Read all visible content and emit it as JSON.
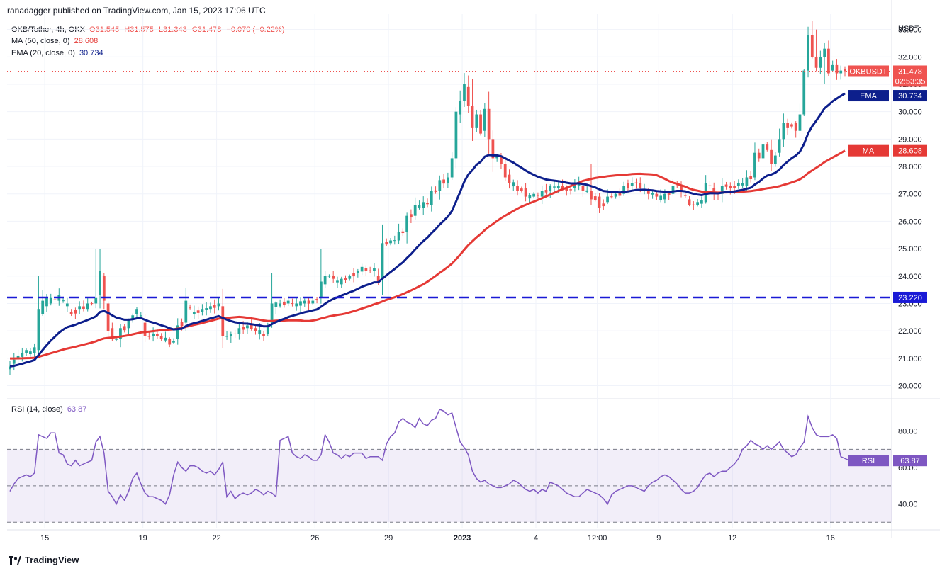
{
  "header": {
    "published": "ranadagger published on TradingView.com, Jan 15, 2023 17:06 UTC"
  },
  "legend": {
    "symbol": "OKB/Tether, 4h, OKX",
    "open": "O31.545",
    "high": "H31.575",
    "low": "L31.343",
    "close": "C31.478",
    "change": "−0.070 (−0.22%)",
    "ma_label": "MA (50, close, 0)",
    "ma_value": "28.608",
    "ema_label": "EMA (20, close, 0)",
    "ema_value": "30.734",
    "rsi_label": "RSI (14, close)",
    "rsi_value": "63.87"
  },
  "colors": {
    "up": "#26a69a",
    "down": "#ef5350",
    "ema": "#0d1f8c",
    "ma": "#e53935",
    "rsi": "#7e57c2",
    "hline": "#1a1ad6",
    "ma_value_color": "#e53935",
    "ema_value_color": "#0d1f8c",
    "rsi_value_color": "#7e57c2"
  },
  "footer": {
    "brand": "TradingView"
  },
  "chart_data": {
    "type": "candlestick",
    "currency_label": "USDT",
    "price_ylim": [
      19.6,
      33.3
    ],
    "price_ticks": [
      "20.000",
      "21.000",
      "22.000",
      "23.000",
      "24.000",
      "25.000",
      "26.000",
      "27.000",
      "28.000",
      "29.000",
      "30.000",
      "31.000",
      "32.000",
      "33.000"
    ],
    "rsi_ylim": [
      27,
      97
    ],
    "rsi_ticks": [
      "40.00",
      "60.00",
      "80.00"
    ],
    "rsi_bands": [
      30,
      50,
      70
    ],
    "x_ticks": [
      {
        "label": "15",
        "pos": 8.5
      },
      {
        "label": "19",
        "pos": 32.5
      },
      {
        "label": "22",
        "pos": 50.5
      },
      {
        "label": "26",
        "pos": 74.5
      },
      {
        "label": "29",
        "pos": 92.5
      },
      {
        "label": "2023",
        "pos": 110.5
      },
      {
        "label": "4",
        "pos": 128.5
      },
      {
        "label": "12:00",
        "pos": 143.5
      },
      {
        "label": "9",
        "pos": 158.5
      },
      {
        "label": "12",
        "pos": 176.5
      },
      {
        "label": "16",
        "pos": 200.5
      }
    ],
    "horizontal_line": {
      "value": 23.22,
      "label": "23.220"
    },
    "last_price": {
      "symbol": "OKBUSDT",
      "value": 31.478,
      "label": "31.478",
      "countdown": "02:53:35"
    },
    "ema_tag": {
      "name": "EMA",
      "label": "30.734"
    },
    "ma_tag": {
      "name": "MA",
      "label": "28.608"
    },
    "rsi_tag": {
      "name": "RSI",
      "label": "63.87"
    },
    "anchors": [
      {
        "i": 0,
        "o": 20.6,
        "c": 20.7
      },
      {
        "i": 1,
        "o": 20.8,
        "c": 20.95
      },
      {
        "i": 2,
        "o": 21.0,
        "c": 21.1
      },
      {
        "i": 3,
        "o": 21.05,
        "c": 21.2
      },
      {
        "i": 4,
        "o": 21.2,
        "c": 21.3
      },
      {
        "i": 5,
        "o": 21.15,
        "c": 21.25
      },
      {
        "i": 6,
        "o": 21.2,
        "c": 21.4
      },
      {
        "i": 7,
        "o": 21.3,
        "c": 22.8
      },
      {
        "i": 8,
        "o": 22.6,
        "c": 23.1
      },
      {
        "i": 9,
        "o": 22.9,
        "c": 23.2
      },
      {
        "i": 10,
        "o": 23.0,
        "c": 23.2
      },
      {
        "i": 12,
        "o": 23.1,
        "c": 23.3
      },
      {
        "i": 14,
        "o": 22.9,
        "c": 23.0
      },
      {
        "i": 15,
        "o": 22.7,
        "c": 22.6
      },
      {
        "i": 17,
        "o": 22.8,
        "c": 22.9
      },
      {
        "i": 19,
        "o": 22.8,
        "c": 23.0
      },
      {
        "i": 21,
        "o": 23.0,
        "c": 23.2
      },
      {
        "i": 22,
        "o": 23.3,
        "c": 24.2
      },
      {
        "i": 23,
        "o": 24.0,
        "c": 23.1
      },
      {
        "i": 24,
        "o": 23.0,
        "c": 22.0
      },
      {
        "i": 25,
        "o": 22.1,
        "c": 21.7
      },
      {
        "i": 27,
        "o": 21.7,
        "c": 22.1
      },
      {
        "i": 29,
        "o": 22.1,
        "c": 22.4
      },
      {
        "i": 31,
        "o": 22.6,
        "c": 22.8
      },
      {
        "i": 33,
        "o": 22.3,
        "c": 21.8
      },
      {
        "i": 35,
        "o": 21.8,
        "c": 21.9
      },
      {
        "i": 37,
        "o": 21.8,
        "c": 21.7
      },
      {
        "i": 39,
        "o": 21.7,
        "c": 21.5
      },
      {
        "i": 41,
        "o": 21.7,
        "c": 22.2
      },
      {
        "i": 43,
        "o": 22.3,
        "c": 23.1
      },
      {
        "i": 45,
        "o": 22.6,
        "c": 22.7
      },
      {
        "i": 47,
        "o": 22.7,
        "c": 22.8
      },
      {
        "i": 49,
        "o": 22.8,
        "c": 22.9
      },
      {
        "i": 51,
        "o": 22.9,
        "c": 23.0
      },
      {
        "i": 52,
        "o": 22.9,
        "c": 21.8
      },
      {
        "i": 54,
        "o": 21.8,
        "c": 21.9
      },
      {
        "i": 56,
        "o": 21.9,
        "c": 22.1
      },
      {
        "i": 58,
        "o": 22.1,
        "c": 22.2
      },
      {
        "i": 60,
        "o": 22.1,
        "c": 22.0
      },
      {
        "i": 62,
        "o": 21.9,
        "c": 21.8
      },
      {
        "i": 63,
        "o": 21.9,
        "c": 22.2
      },
      {
        "i": 64,
        "o": 22.3,
        "c": 23.0
      },
      {
        "i": 66,
        "o": 22.9,
        "c": 23.0
      },
      {
        "i": 68,
        "o": 23.0,
        "c": 23.1
      },
      {
        "i": 70,
        "o": 22.9,
        "c": 23.0
      },
      {
        "i": 72,
        "o": 23.0,
        "c": 23.1
      },
      {
        "i": 74,
        "o": 23.0,
        "c": 23.1
      },
      {
        "i": 76,
        "o": 23.2,
        "c": 23.8
      },
      {
        "i": 77,
        "o": 23.7,
        "c": 24.0
      },
      {
        "i": 79,
        "o": 24.0,
        "c": 23.9
      },
      {
        "i": 81,
        "o": 23.7,
        "c": 23.9
      },
      {
        "i": 83,
        "o": 23.9,
        "c": 24.0
      },
      {
        "i": 85,
        "o": 24.1,
        "c": 24.2
      },
      {
        "i": 87,
        "o": 24.3,
        "c": 24.2
      },
      {
        "i": 89,
        "o": 24.2,
        "c": 24.3
      },
      {
        "i": 90,
        "o": 24.0,
        "c": 23.8
      },
      {
        "i": 91,
        "o": 23.9,
        "c": 25.2
      },
      {
        "i": 93,
        "o": 25.2,
        "c": 25.3
      },
      {
        "i": 95,
        "o": 25.3,
        "c": 25.6
      },
      {
        "i": 97,
        "o": 25.6,
        "c": 26.2
      },
      {
        "i": 99,
        "o": 26.2,
        "c": 26.6
      },
      {
        "i": 101,
        "o": 26.5,
        "c": 26.7
      },
      {
        "i": 103,
        "o": 26.6,
        "c": 27.1
      },
      {
        "i": 105,
        "o": 27.1,
        "c": 27.5
      },
      {
        "i": 107,
        "o": 27.4,
        "c": 27.6
      },
      {
        "i": 108,
        "o": 27.6,
        "c": 28.3
      },
      {
        "i": 109,
        "o": 28.3,
        "c": 30.0
      },
      {
        "i": 110,
        "o": 29.9,
        "c": 30.4
      },
      {
        "i": 111,
        "o": 30.4,
        "c": 31.0
      },
      {
        "i": 112,
        "o": 30.9,
        "c": 30.2
      },
      {
        "i": 113,
        "o": 30.2,
        "c": 29.4
      },
      {
        "i": 114,
        "o": 29.4,
        "c": 29.9
      },
      {
        "i": 115,
        "o": 29.9,
        "c": 29.2
      },
      {
        "i": 116,
        "o": 29.3,
        "c": 30.1
      },
      {
        "i": 117,
        "o": 30.1,
        "c": 29.0
      },
      {
        "i": 118,
        "o": 29.0,
        "c": 28.3
      },
      {
        "i": 119,
        "o": 28.3,
        "c": 28.4
      },
      {
        "i": 120,
        "o": 28.4,
        "c": 28.1
      },
      {
        "i": 121,
        "o": 28.1,
        "c": 27.6
      },
      {
        "i": 122,
        "o": 27.7,
        "c": 27.4
      },
      {
        "i": 124,
        "o": 27.3,
        "c": 27.1
      },
      {
        "i": 126,
        "o": 27.2,
        "c": 26.9
      },
      {
        "i": 128,
        "o": 26.9,
        "c": 27.0
      },
      {
        "i": 130,
        "o": 26.9,
        "c": 27.1
      },
      {
        "i": 132,
        "o": 27.1,
        "c": 27.3
      },
      {
        "i": 134,
        "o": 27.2,
        "c": 27.3
      },
      {
        "i": 135,
        "o": 27.3,
        "c": 27.2
      },
      {
        "i": 136,
        "o": 27.2,
        "c": 27.1
      },
      {
        "i": 138,
        "o": 27.2,
        "c": 27.4
      },
      {
        "i": 140,
        "o": 27.3,
        "c": 27.1
      },
      {
        "i": 142,
        "o": 27.1,
        "c": 26.8
      },
      {
        "i": 144,
        "o": 26.9,
        "c": 26.5
      },
      {
        "i": 146,
        "o": 26.7,
        "c": 26.9
      },
      {
        "i": 148,
        "o": 26.9,
        "c": 27.0
      },
      {
        "i": 150,
        "o": 27.0,
        "c": 27.3
      },
      {
        "i": 152,
        "o": 27.3,
        "c": 27.4
      },
      {
        "i": 154,
        "o": 27.4,
        "c": 27.2
      },
      {
        "i": 156,
        "o": 27.1,
        "c": 27.0
      },
      {
        "i": 158,
        "o": 27.0,
        "c": 26.9
      },
      {
        "i": 160,
        "o": 26.8,
        "c": 27.0
      },
      {
        "i": 162,
        "o": 27.0,
        "c": 27.3
      },
      {
        "i": 164,
        "o": 27.3,
        "c": 27.1
      },
      {
        "i": 166,
        "o": 26.8,
        "c": 26.6
      },
      {
        "i": 168,
        "o": 26.6,
        "c": 26.7
      },
      {
        "i": 170,
        "o": 26.7,
        "c": 27.4
      },
      {
        "i": 172,
        "o": 27.2,
        "c": 27.0
      },
      {
        "i": 174,
        "o": 27.0,
        "c": 27.3
      },
      {
        "i": 176,
        "o": 27.3,
        "c": 27.2
      },
      {
        "i": 178,
        "o": 27.3,
        "c": 27.4
      },
      {
        "i": 180,
        "o": 27.3,
        "c": 27.6
      },
      {
        "i": 182,
        "o": 27.6,
        "c": 28.5
      },
      {
        "i": 183,
        "o": 28.5,
        "c": 28.3
      },
      {
        "i": 184,
        "o": 28.3,
        "c": 28.8
      },
      {
        "i": 185,
        "o": 28.8,
        "c": 28.6
      },
      {
        "i": 186,
        "o": 28.6,
        "c": 28.1
      },
      {
        "i": 187,
        "o": 28.1,
        "c": 28.4
      },
      {
        "i": 188,
        "o": 28.5,
        "c": 29.0
      },
      {
        "i": 189,
        "o": 29.0,
        "c": 29.6
      },
      {
        "i": 190,
        "o": 29.6,
        "c": 29.4
      },
      {
        "i": 192,
        "o": 29.6,
        "c": 29.3
      },
      {
        "i": 193,
        "o": 29.3,
        "c": 29.9
      },
      {
        "i": 194,
        "o": 29.9,
        "c": 31.5
      },
      {
        "i": 195,
        "o": 31.5,
        "c": 32.8
      },
      {
        "i": 196,
        "o": 32.8,
        "c": 32.0
      },
      {
        "i": 197,
        "o": 32.0,
        "c": 31.6
      },
      {
        "i": 198,
        "o": 31.6,
        "c": 32.0
      },
      {
        "i": 199,
        "o": 32.0,
        "c": 32.3
      },
      {
        "i": 200,
        "o": 32.3,
        "c": 31.4
      },
      {
        "i": 201,
        "o": 31.5,
        "c": 31.7
      },
      {
        "i": 202,
        "o": 31.7,
        "c": 31.4
      },
      {
        "i": 203,
        "o": 31.4,
        "c": 31.5
      },
      {
        "i": 204,
        "o": 31.55,
        "c": 31.48
      }
    ],
    "rsi_series": [
      47,
      51,
      54,
      55,
      56,
      55,
      57,
      78,
      77,
      76,
      79,
      79,
      68,
      67,
      62,
      61,
      64,
      61,
      62,
      63,
      64,
      74,
      77,
      68,
      47,
      44,
      40,
      45,
      42,
      47,
      54,
      57,
      51,
      46,
      44,
      44,
      43,
      42,
      40,
      45,
      56,
      63,
      60,
      58,
      61,
      61,
      60,
      58,
      57,
      58,
      56,
      59,
      63,
      44,
      47,
      43,
      45,
      46,
      45,
      46,
      48,
      47,
      45,
      47,
      46,
      44,
      75,
      76,
      77,
      68,
      66,
      65,
      67,
      66,
      64,
      64,
      67,
      78,
      74,
      68,
      67,
      65,
      67,
      66,
      68,
      68,
      68,
      65,
      66,
      66,
      66,
      64,
      73,
      77,
      79,
      85,
      87,
      85,
      84,
      82,
      87,
      84,
      83,
      86,
      87,
      92,
      91,
      89,
      90,
      82,
      74,
      71,
      67,
      58,
      54,
      52,
      53,
      51,
      50,
      49,
      49,
      50,
      51,
      53,
      52,
      50,
      48,
      47,
      48,
      46,
      48,
      47,
      52,
      51,
      50,
      48,
      46,
      45,
      44,
      44,
      46,
      48,
      47,
      46,
      45,
      43,
      40,
      45,
      47,
      48,
      49,
      50,
      50,
      49,
      48,
      47,
      50,
      52,
      53,
      55,
      56,
      55,
      53,
      51,
      48,
      46,
      46,
      47,
      49,
      53,
      56,
      57,
      55,
      57,
      58,
      58,
      60,
      62,
      65,
      70,
      72,
      75,
      73,
      72,
      70,
      72,
      70,
      72,
      74,
      70,
      68,
      66,
      67,
      71,
      74,
      88,
      82,
      78,
      77,
      77,
      77,
      78,
      76,
      66,
      65,
      64,
      63,
      64
    ]
  }
}
